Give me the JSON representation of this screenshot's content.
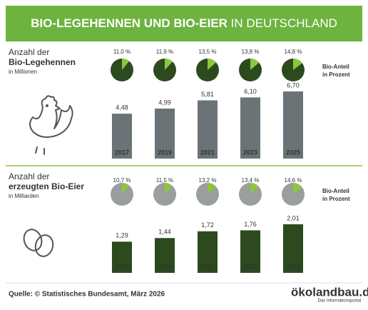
{
  "header": {
    "title": [
      "BIO-LEGEHENNEN UND BIO-EIER",
      "IN DEUTSCHLAND"
    ]
  },
  "chart_data": [
    {
      "type": "bar",
      "title": [
        "Anzahl der",
        "Bio-Legehennen"
      ],
      "subtitle": "in Millionen",
      "categories": [
        "2017",
        "2019",
        "2021",
        "2023",
        "2025"
      ],
      "values": [
        4.48,
        4.99,
        5.81,
        6.1,
        6.7
      ],
      "value_labels": [
        "4,48",
        "4,99",
        "5,81",
        "6,10",
        "6,70"
      ],
      "color": "#6b7377",
      "pies": {
        "type": "pie",
        "label": [
          "Bio-Anteil",
          "in Prozent"
        ],
        "values": [
          11.0,
          11.9,
          13.5,
          13.8,
          14.8
        ],
        "value_labels": [
          "11,0 %",
          "11,9 %",
          "13,5 %",
          "13,8 %",
          "14,8 %"
        ],
        "color": "#8cc63f",
        "rest_color": "#2c4a1e"
      }
    },
    {
      "type": "bar",
      "title": [
        "Anzahl der",
        "erzeugten Bio-Eier"
      ],
      "subtitle": "in Milliarden",
      "categories": [
        "2017",
        "2019",
        "2021",
        "2023",
        "2025"
      ],
      "values": [
        1.29,
        1.44,
        1.72,
        1.76,
        2.01
      ],
      "value_labels": [
        "1,29",
        "1,44",
        "1,72",
        "1,76",
        "2,01"
      ],
      "color": "#2c4a1e",
      "pies": {
        "type": "pie",
        "label": [
          "Bio-Anteil",
          "in Prozent"
        ],
        "values": [
          10.7,
          11.5,
          13.2,
          13.4,
          14.6
        ],
        "value_labels": [
          "10,7 %",
          "11,5 %",
          "13,2 %",
          "13,4 %",
          "14,6 %"
        ],
        "color": "#8cc63f",
        "rest_color": "#9a9e9f"
      }
    }
  ],
  "footer": {
    "source": "Quelle: © Statistisches Bundesamt, März 2026",
    "logo": "ökolandbau.de",
    "logo_sub": "Das Informationsportal"
  }
}
